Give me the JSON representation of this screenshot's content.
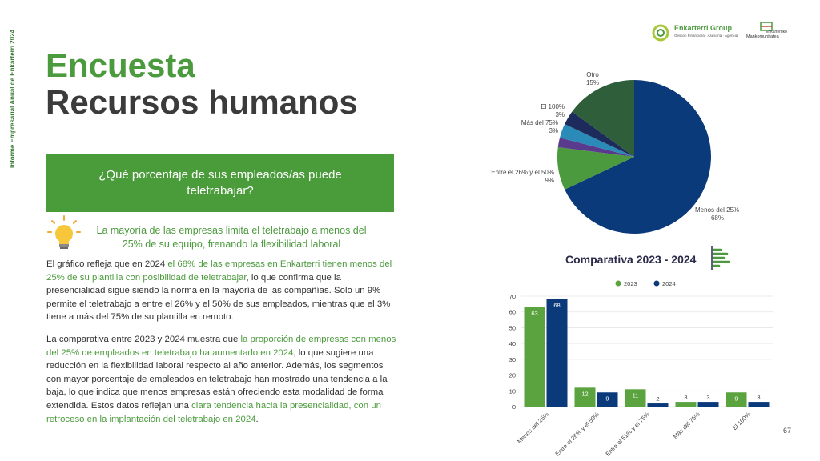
{
  "side_label": "Informe Empresarial Anual de Enkarterri 2024",
  "title_line1": "Encuesta",
  "title_line2": "Recursos humanos",
  "question": "¿Qué porcentaje de sus empleados/as puede teletrabajar?",
  "highlight": "La mayoría de las empresas limita el teletrabajo a menos del 25% de su equipo, frenando la flexibilidad laboral",
  "para1": [
    {
      "t": "El gráfico refleja que en 2024 ",
      "g": false
    },
    {
      "t": "el 68% de las empresas en Enkarterri tienen menos del 25% de su plantilla con posibilidad de teletrabajar",
      "g": true
    },
    {
      "t": ", lo que confirma que la presencialidad sigue siendo la norma en la mayoría de las compañías. Solo un 9% permite el teletrabajo a entre el 26% y el 50% de sus empleados, mientras que el 3% tiene a más del 75% de su plantilla en remoto.",
      "g": false
    }
  ],
  "para2": [
    {
      "t": "La comparativa entre 2023 y 2024 muestra que ",
      "g": false
    },
    {
      "t": "la proporción de empresas con menos del 25% de empleados en teletrabajo ha aumentado en 2024",
      "g": true
    },
    {
      "t": ", lo que sugiere una reducción en la flexibilidad laboral respecto al año anterior. Además, los segmentos con mayor porcentaje de empleados en teletrabajo han mostrado una tendencia a la baja, lo que indica que menos empresas están ofreciendo esta modalidad de forma extendida. Estos datos reflejan una ",
      "g": false
    },
    {
      "t": "clara tendencia hacia la presencialidad, con un retroceso en la implantación del teletrabajo en 2024",
      "g": true
    },
    {
      "t": ".",
      "g": false
    }
  ],
  "logo_a": {
    "name": "Enkarterri Group",
    "sub": "Gestión Financiera · Asesoría · Agencia"
  },
  "logo_b": {
    "name": "Enkarterriko",
    "sub": "Mankomunitatea"
  },
  "comparison_title": "Comparativa 2023 - 2024",
  "page_number": "67",
  "colors": {
    "green": "#4c9a3e",
    "navy": "#0b3a7a",
    "dark_green": "#2e5e3a",
    "purple": "#5a3a8c",
    "teal": "#2a8ab8",
    "dark_navy": "#1d2a5c"
  },
  "chart_data": [
    {
      "type": "pie",
      "slices": [
        {
          "label": "Menos del 25%",
          "value": 68,
          "pct_label": "68%",
          "color": "#0b3a7a"
        },
        {
          "label": "Entre el 26% y el 50%",
          "value": 9,
          "pct_label": "9%",
          "color": "#4c9a3e"
        },
        {
          "label": "",
          "value": 2,
          "pct_label": "",
          "color": "#5a3a8c"
        },
        {
          "label": "Más del 75%",
          "value": 3,
          "pct_label": "3%",
          "color": "#2a8ab8"
        },
        {
          "label": "El 100%",
          "value": 3,
          "pct_label": "3%",
          "color": "#1d2a5c"
        },
        {
          "label": "Otro",
          "value": 15,
          "pct_label": "15%",
          "color": "#2e5e3a"
        }
      ]
    },
    {
      "type": "bar",
      "categories": [
        "Menos del 25%",
        "Entre el 26% y el 50%",
        "Entre el 51% y el 75%",
        "Más del 75%",
        "El 100%"
      ],
      "series": [
        {
          "name": "2023",
          "values": [
            63,
            12,
            11,
            3,
            9
          ],
          "color": "#5aa33e"
        },
        {
          "name": "2024",
          "values": [
            68,
            9,
            2,
            3,
            3
          ],
          "color": "#0b3a7a"
        }
      ],
      "ylim": [
        0,
        70
      ],
      "yticks": [
        0,
        10,
        20,
        30,
        40,
        50,
        60,
        70
      ],
      "legend": "top",
      "grid": true
    }
  ]
}
